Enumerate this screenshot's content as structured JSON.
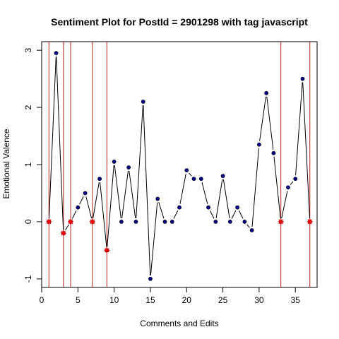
{
  "chart_data": {
    "type": "line",
    "title": "Sentiment Plot for PostId =  2901298  with tag  javascript",
    "xlabel": "Comments and Edits",
    "ylabel": "Emotional Valence",
    "xlim": [
      0,
      38
    ],
    "ylim": [
      -1.15,
      3.15
    ],
    "x_ticks": [
      0,
      5,
      10,
      15,
      20,
      25,
      30,
      35
    ],
    "y_ticks": [
      -1,
      0,
      1,
      2,
      3
    ],
    "grid": false,
    "legend": "none",
    "series": [
      {
        "x": [
          1,
          2,
          3,
          4,
          5,
          6,
          7,
          8,
          9,
          10,
          11,
          12,
          13,
          14,
          15,
          16,
          17,
          18,
          19,
          20,
          21,
          22,
          23,
          24,
          25,
          26,
          27,
          28,
          29,
          30,
          31,
          32,
          33,
          34,
          35,
          36,
          37
        ],
        "values": [
          0,
          2.95,
          -0.2,
          0,
          0.25,
          0.5,
          0,
          0.75,
          -0.5,
          1.05,
          0,
          0.95,
          0,
          2.1,
          -1,
          0.4,
          0,
          0,
          0.25,
          0.9,
          0.75,
          0.75,
          0.25,
          0,
          0.8,
          0,
          0.25,
          0,
          -0.15,
          1.35,
          2.25,
          1.2,
          0,
          0.6,
          0.75,
          2.5,
          0
        ],
        "line_color": "#000000",
        "marker_color": "#00008b"
      }
    ],
    "edit_points": {
      "x": [
        1,
        3,
        4,
        7,
        9,
        33,
        37
      ],
      "values": [
        0,
        -0.2,
        0,
        0,
        -0.5,
        0,
        0
      ],
      "marker_color": "#ff0000",
      "line_color": "#b22222"
    }
  }
}
